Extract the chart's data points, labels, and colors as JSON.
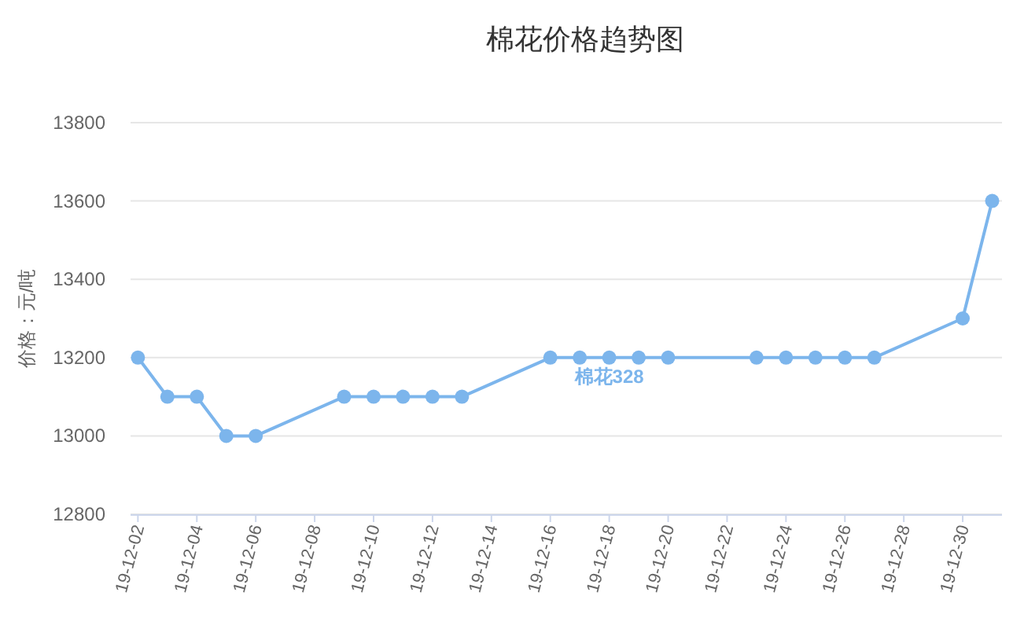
{
  "chart_data": {
    "type": "line",
    "title": "棉花价格趋势图",
    "ylabel": "价格：元/吨",
    "x": [
      "--12-02",
      "--12-03",
      "--12-04",
      "--12-05",
      "--12-06",
      "--12-09",
      "--12-10",
      "--12-11",
      "--12-12",
      "--12-13",
      "--12-16",
      "--12-17",
      "--12-18",
      "--12-19",
      "--12-20",
      "--12-23",
      "--12-24",
      "--12-25",
      "--12-26",
      "--12-27",
      "--12-30",
      "--12-31"
    ],
    "series": [
      {
        "name": "棉花328",
        "color": "#7cb5ec",
        "values": [
          13200,
          13100,
          13100,
          13000,
          13000,
          13100,
          13100,
          13100,
          13100,
          13100,
          13200,
          13200,
          13200,
          13200,
          13200,
          13200,
          13200,
          13200,
          13200,
          13200,
          13300,
          13600
        ]
      }
    ],
    "xlim": [
      "--12-01T18:00",
      "--12-31T08:00"
    ],
    "xticks": [
      {
        "value": "--12-02",
        "label": "19-12-02"
      },
      {
        "value": "--12-04",
        "label": "19-12-04"
      },
      {
        "value": "--12-06",
        "label": "19-12-06"
      },
      {
        "value": "--12-08",
        "label": "19-12-08"
      },
      {
        "value": "--12-10",
        "label": "19-12-10"
      },
      {
        "value": "--12-12",
        "label": "19-12-12"
      },
      {
        "value": "--12-14",
        "label": "19-12-14"
      },
      {
        "value": "--12-16",
        "label": "19-12-16"
      },
      {
        "value": "--12-18",
        "label": "19-12-18"
      },
      {
        "value": "--12-20",
        "label": "19-12-20"
      },
      {
        "value": "--12-22",
        "label": "19-12-22"
      },
      {
        "value": "--12-24",
        "label": "19-12-24"
      },
      {
        "value": "--12-26",
        "label": "19-12-26"
      },
      {
        "value": "--12-28",
        "label": "19-12-28"
      },
      {
        "value": "--12-30",
        "label": "19-12-30"
      }
    ],
    "ylim": [
      12800,
      13800
    ],
    "yticks": [
      12800,
      13000,
      13200,
      13400,
      13600,
      13800
    ],
    "grid": "y",
    "marker": "circle",
    "line_style": "solid"
  }
}
